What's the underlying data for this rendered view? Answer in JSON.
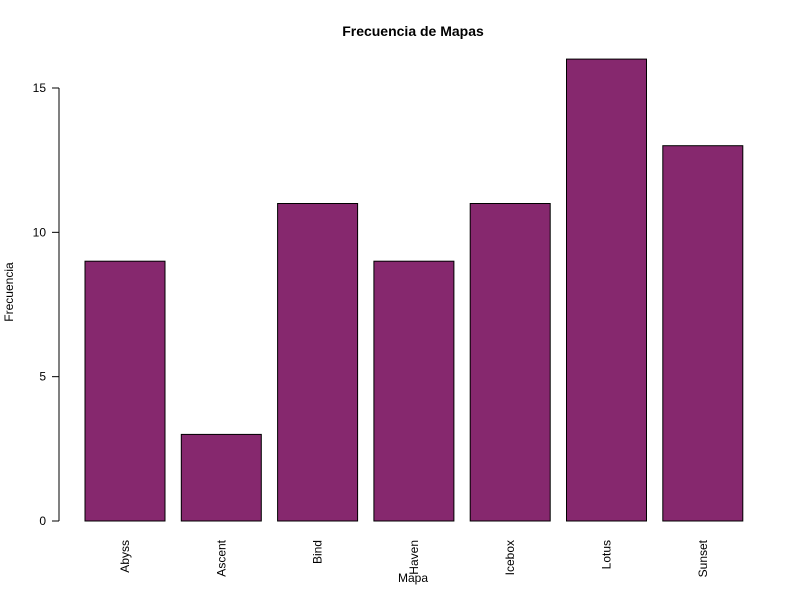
{
  "chart_data": {
    "type": "bar",
    "title": "Frecuencia de Mapas",
    "xlabel": "Mapa",
    "ylabel": "Frecuencia",
    "categories": [
      "Abyss",
      "Ascent",
      "Bind",
      "Haven",
      "Icebox",
      "Lotus",
      "Sunset"
    ],
    "values": [
      9,
      3,
      11,
      9,
      11,
      16,
      13
    ],
    "ylim": [
      0,
      16
    ],
    "yticks": [
      0,
      5,
      10,
      15
    ],
    "bar_color": "#86286E",
    "bar_border_color": "#000000",
    "grid": false,
    "legend": "none",
    "x_tick_label_orientation": "vertical"
  }
}
